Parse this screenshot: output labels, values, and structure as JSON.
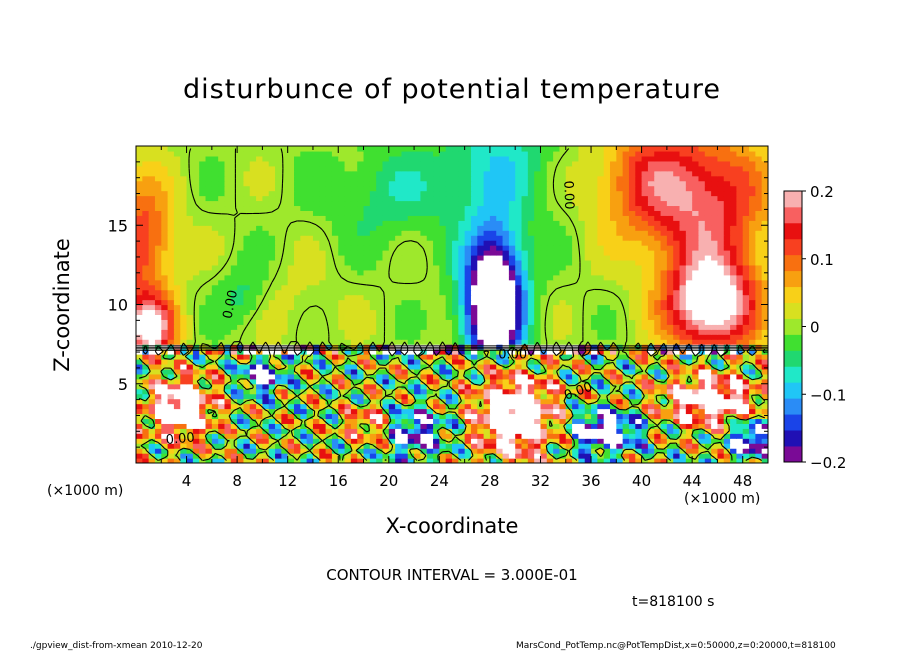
{
  "page": {
    "footer_left": "./gpview_dist-from-xmean 2010-12-20",
    "footer_right": "MarsCond_PotTemp.nc@PotTempDist,x=0:50000,z=0:20000,t=818100",
    "contour_interval": "CONTOUR INTERVAL = 3.000E-01",
    "time_label": "t=818100 s",
    "x_unit_left": "(×1000 m)",
    "x_unit_right": "(×1000 m)"
  },
  "chart_data": {
    "type": "heatmap",
    "title": "disturbunce of potential temperature",
    "xlabel": "X-coordinate",
    "ylabel": "Z-coordinate",
    "xlim": [
      0,
      50
    ],
    "ylim": [
      0,
      20
    ],
    "x_ticks": [
      4,
      8,
      12,
      16,
      20,
      24,
      28,
      32,
      36,
      40,
      44,
      48
    ],
    "x_tick_labels": [
      "4",
      "8",
      "12",
      "16",
      "20",
      "24",
      "28",
      "32",
      "36",
      "40",
      "44",
      "48"
    ],
    "y_ticks": [
      5,
      10,
      15
    ],
    "y_tick_labels": [
      "5",
      "10",
      "15"
    ],
    "colorbar": {
      "range": [
        -0.2,
        0.2
      ],
      "ticks": [
        0.2,
        0.1,
        0,
        -0.1,
        -0.2
      ],
      "tick_labels": [
        "0.2",
        "0.1",
        "0",
        "−0.1",
        "−0.2"
      ],
      "colors": [
        "#7a0a96",
        "#2010b4",
        "#1a44e8",
        "#2a8cf6",
        "#20c6f6",
        "#20e8c8",
        "#20d870",
        "#40e030",
        "#9ee82c",
        "#d8e020",
        "#f8d018",
        "#f8a010",
        "#f87010",
        "#f84020",
        "#e81010",
        "#f86060",
        "#f8b0b0"
      ]
    },
    "contour_labels": [
      {
        "text": "0.00",
        "x": 7.5,
        "z": 10.0,
        "angle": -78
      },
      {
        "text": "0.00",
        "x": 34.2,
        "z": 16.9,
        "angle": 88
      },
      {
        "text": "0.00",
        "x": 3.5,
        "z": 1.5,
        "angle": -5
      },
      {
        "text": "0.00",
        "x": 29.8,
        "z": 6.8,
        "angle": 0
      },
      {
        "text": "0.00",
        "x": 35.0,
        "z": 4.5,
        "angle": -20
      }
    ],
    "fields": [
      {
        "x": 1.0,
        "z": 8.5,
        "v": 0.22,
        "sx": 2.0,
        "sz": 2.0
      },
      {
        "x": 0.5,
        "z": 14.0,
        "v": 0.13,
        "sx": 2.5,
        "sz": 4.0
      },
      {
        "x": 45.5,
        "z": 10.0,
        "v": 0.25,
        "sx": 3.5,
        "sz": 3.0
      },
      {
        "x": 45.0,
        "z": 16.5,
        "v": 0.16,
        "sx": 5.0,
        "sz": 4.5
      },
      {
        "x": 40.0,
        "z": 18.0,
        "v": 0.09,
        "sx": 4.0,
        "sz": 3.5
      },
      {
        "x": 28.3,
        "z": 10.2,
        "v": -0.33,
        "sx": 2.3,
        "sz": 4.3
      },
      {
        "x": 28.5,
        "z": 19.0,
        "v": -0.07,
        "sx": 4.5,
        "sz": 4.0
      },
      {
        "x": 20.0,
        "z": 17.0,
        "v": -0.05,
        "sx": 5.0,
        "sz": 3.0
      },
      {
        "x": 8.5,
        "z": 10.5,
        "v": -0.05,
        "sx": 2.0,
        "sz": 2.0
      },
      {
        "x": 12.0,
        "z": 10.0,
        "v": 0.02,
        "sx": 4.0,
        "sz": 2.5
      }
    ],
    "low_fields": [
      {
        "x": 3.5,
        "z": 3.5,
        "v": 0.32,
        "sx": 2.5,
        "sz": 1.8
      },
      {
        "x": 30.0,
        "z": 3.0,
        "v": 0.35,
        "sx": 3.0,
        "sz": 2.5
      },
      {
        "x": 45.5,
        "z": 4.0,
        "v": 0.3,
        "sx": 3.5,
        "sz": 1.5
      },
      {
        "x": 18.5,
        "z": 2.5,
        "v": 0.15,
        "sx": 2.0,
        "sz": 1.2
      },
      {
        "x": 10.0,
        "z": 5.5,
        "v": -0.25,
        "sx": 1.5,
        "sz": 1.0
      },
      {
        "x": 22.0,
        "z": 2.0,
        "v": -0.2,
        "sx": 2.5,
        "sz": 1.5
      },
      {
        "x": 37.0,
        "z": 2.0,
        "v": -0.3,
        "sx": 2.5,
        "sz": 1.2
      },
      {
        "x": 48.5,
        "z": 1.5,
        "v": -0.25,
        "sx": 1.5,
        "sz": 1.2
      }
    ],
    "tropopause_z": 7.3
  }
}
